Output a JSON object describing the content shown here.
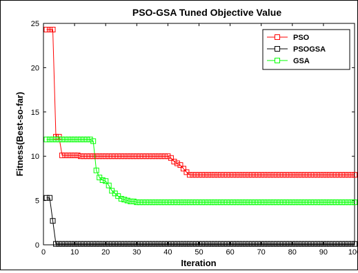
{
  "chart_data": {
    "type": "line",
    "title": "PSO-GSA Tuned Objective Value",
    "xlabel": "Iteration",
    "ylabel": "Fitness(Best-so-far)",
    "xlim": [
      0,
      100
    ],
    "ylim": [
      0,
      25
    ],
    "x_ticks": [
      "0",
      "10",
      "20",
      "30",
      "40",
      "50",
      "60",
      "70",
      "80",
      "90",
      "100"
    ],
    "y_ticks": [
      "0",
      "5",
      "10",
      "15",
      "20",
      "25"
    ],
    "grid": false,
    "legend_position": "top-right",
    "series": [
      {
        "name": "PSO",
        "color": "#ff0000",
        "marker": "square",
        "x": [
          1,
          2,
          3,
          4,
          5,
          6,
          7,
          8,
          9,
          10,
          11,
          12,
          13,
          14,
          15,
          16,
          17,
          18,
          19,
          20,
          21,
          22,
          23,
          24,
          25,
          26,
          27,
          28,
          29,
          30,
          31,
          32,
          33,
          34,
          35,
          36,
          37,
          38,
          39,
          40,
          41,
          42,
          43,
          44,
          45,
          46,
          47,
          48,
          49,
          50,
          51,
          52,
          53,
          54,
          55,
          56,
          57,
          58,
          59,
          60,
          61,
          62,
          63,
          64,
          65,
          66,
          67,
          68,
          69,
          70,
          71,
          72,
          73,
          74,
          75,
          76,
          77,
          78,
          79,
          80,
          81,
          82,
          83,
          84,
          85,
          86,
          87,
          88,
          89,
          90,
          91,
          92,
          93,
          94,
          95,
          96,
          97,
          98,
          99,
          100
        ],
        "y": [
          24.3,
          24.3,
          24.3,
          12.2,
          12.2,
          10.1,
          10.1,
          10.1,
          10.1,
          10.1,
          10.1,
          10.0,
          10.0,
          10.0,
          10.0,
          10.0,
          10.0,
          10.0,
          10.0,
          10.0,
          10.0,
          10.0,
          10.0,
          10.0,
          10.0,
          10.0,
          10.0,
          10.0,
          10.0,
          10.0,
          10.0,
          10.0,
          10.0,
          10.0,
          10.0,
          10.0,
          10.0,
          10.0,
          10.0,
          10.0,
          9.8,
          9.4,
          9.2,
          9.0,
          8.6,
          8.2,
          7.9,
          7.9,
          7.9,
          7.9,
          7.9,
          7.9,
          7.9,
          7.9,
          7.9,
          7.9,
          7.9,
          7.9,
          7.9,
          7.9,
          7.9,
          7.9,
          7.9,
          7.9,
          7.9,
          7.9,
          7.9,
          7.9,
          7.9,
          7.9,
          7.9,
          7.9,
          7.9,
          7.9,
          7.9,
          7.9,
          7.9,
          7.9,
          7.9,
          7.9,
          7.9,
          7.9,
          7.9,
          7.9,
          7.9,
          7.9,
          7.9,
          7.9,
          7.9,
          7.9,
          7.9,
          7.9,
          7.9,
          7.9,
          7.9,
          7.9,
          7.9,
          7.9,
          7.9,
          7.9
        ]
      },
      {
        "name": "PSOGSA",
        "color": "#000000",
        "marker": "square",
        "x": [
          1,
          2,
          3,
          4,
          5,
          6,
          7,
          8,
          9,
          10,
          11,
          12,
          13,
          14,
          15,
          16,
          17,
          18,
          19,
          20,
          21,
          22,
          23,
          24,
          25,
          26,
          27,
          28,
          29,
          30,
          31,
          32,
          33,
          34,
          35,
          36,
          37,
          38,
          39,
          40,
          41,
          42,
          43,
          44,
          45,
          46,
          47,
          48,
          49,
          50,
          51,
          52,
          53,
          54,
          55,
          56,
          57,
          58,
          59,
          60,
          61,
          62,
          63,
          64,
          65,
          66,
          67,
          68,
          69,
          70,
          71,
          72,
          73,
          74,
          75,
          76,
          77,
          78,
          79,
          80,
          81,
          82,
          83,
          84,
          85,
          86,
          87,
          88,
          89,
          90,
          91,
          92,
          93,
          94,
          95,
          96,
          97,
          98,
          99,
          100
        ],
        "y": [
          5.3,
          5.3,
          2.7,
          0.1,
          0.1,
          0.1,
          0.1,
          0.1,
          0.1,
          0.1,
          0.1,
          0.1,
          0.1,
          0.1,
          0.1,
          0.1,
          0.1,
          0.1,
          0.1,
          0.1,
          0.1,
          0.1,
          0.1,
          0.1,
          0.1,
          0.1,
          0.1,
          0.1,
          0.1,
          0.1,
          0.1,
          0.1,
          0.1,
          0.1,
          0.1,
          0.1,
          0.1,
          0.1,
          0.1,
          0.1,
          0.1,
          0.1,
          0.1,
          0.1,
          0.1,
          0.1,
          0.1,
          0.1,
          0.1,
          0.1,
          0.1,
          0.1,
          0.1,
          0.1,
          0.1,
          0.1,
          0.1,
          0.1,
          0.1,
          0.1,
          0.1,
          0.1,
          0.1,
          0.1,
          0.1,
          0.1,
          0.1,
          0.1,
          0.1,
          0.1,
          0.1,
          0.1,
          0.1,
          0.1,
          0.1,
          0.1,
          0.1,
          0.1,
          0.1,
          0.1,
          0.1,
          0.1,
          0.1,
          0.1,
          0.1,
          0.1,
          0.1,
          0.1,
          0.1,
          0.1,
          0.1,
          0.1,
          0.1,
          0.1,
          0.1,
          0.1,
          0.1,
          0.1,
          0.1,
          0.1
        ]
      },
      {
        "name": "GSA",
        "color": "#00ff00",
        "marker": "square",
        "x": [
          1,
          2,
          3,
          4,
          5,
          6,
          7,
          8,
          9,
          10,
          11,
          12,
          13,
          14,
          15,
          16,
          17,
          18,
          19,
          20,
          21,
          22,
          23,
          24,
          25,
          26,
          27,
          28,
          29,
          30,
          31,
          32,
          33,
          34,
          35,
          36,
          37,
          38,
          39,
          40,
          41,
          42,
          43,
          44,
          45,
          46,
          47,
          48,
          49,
          50,
          51,
          52,
          53,
          54,
          55,
          56,
          57,
          58,
          59,
          60,
          61,
          62,
          63,
          64,
          65,
          66,
          67,
          68,
          69,
          70,
          71,
          72,
          73,
          74,
          75,
          76,
          77,
          78,
          79,
          80,
          81,
          82,
          83,
          84,
          85,
          86,
          87,
          88,
          89,
          90,
          91,
          92,
          93,
          94,
          95,
          96,
          97,
          98,
          99,
          100
        ],
        "y": [
          11.9,
          11.9,
          11.9,
          11.9,
          11.9,
          11.9,
          11.9,
          11.9,
          11.9,
          11.9,
          11.9,
          11.9,
          11.9,
          11.9,
          11.9,
          11.7,
          8.4,
          7.6,
          7.3,
          7.2,
          6.7,
          6.1,
          5.8,
          5.5,
          5.2,
          5.1,
          5.0,
          4.9,
          4.9,
          4.8,
          4.8,
          4.8,
          4.8,
          4.8,
          4.8,
          4.8,
          4.8,
          4.8,
          4.8,
          4.8,
          4.8,
          4.8,
          4.8,
          4.8,
          4.8,
          4.8,
          4.8,
          4.8,
          4.8,
          4.8,
          4.8,
          4.8,
          4.8,
          4.8,
          4.8,
          4.8,
          4.8,
          4.8,
          4.8,
          4.8,
          4.8,
          4.8,
          4.8,
          4.8,
          4.8,
          4.8,
          4.8,
          4.8,
          4.8,
          4.8,
          4.8,
          4.8,
          4.8,
          4.8,
          4.8,
          4.8,
          4.8,
          4.8,
          4.8,
          4.8,
          4.8,
          4.8,
          4.8,
          4.8,
          4.8,
          4.8,
          4.8,
          4.8,
          4.8,
          4.8,
          4.8,
          4.8,
          4.8,
          4.8,
          4.8,
          4.8,
          4.8,
          4.8,
          4.8,
          4.8
        ]
      }
    ]
  }
}
